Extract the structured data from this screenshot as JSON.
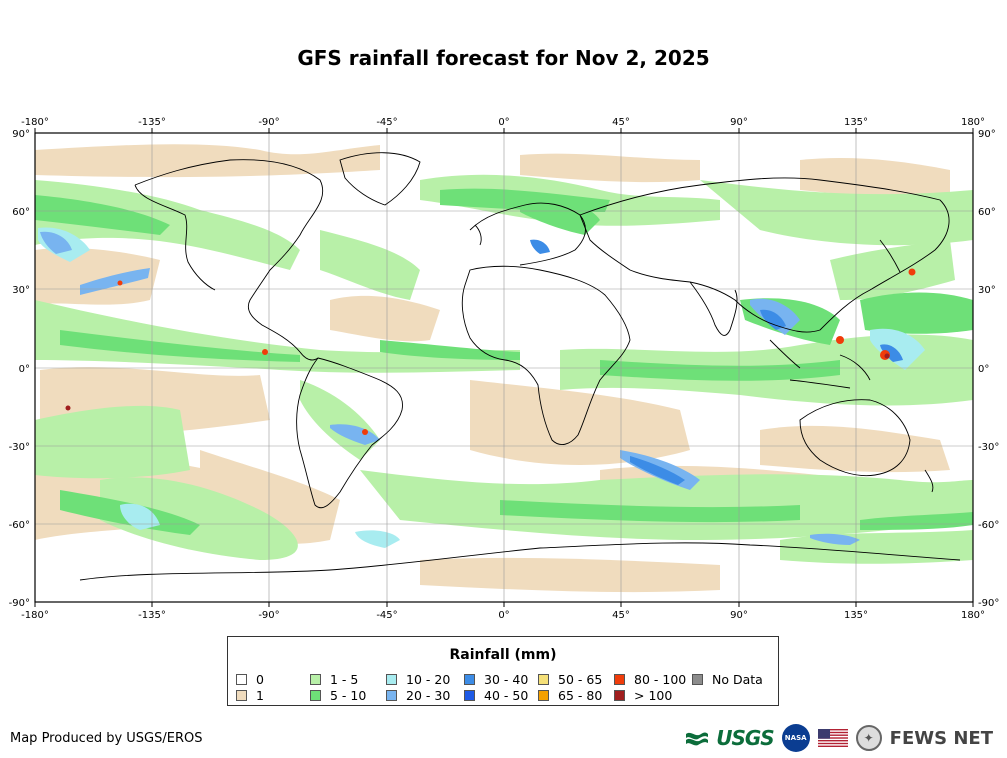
{
  "title": "GFS rainfall forecast for Nov 2, 2025",
  "lon_ticks": [
    "-180°",
    "-135°",
    "-90°",
    "-45°",
    "0°",
    "45°",
    "90°",
    "135°",
    "180°"
  ],
  "lat_ticks": [
    "90°",
    "60°",
    "30°",
    "0°",
    "-30°",
    "-60°",
    "-90°"
  ],
  "legend": {
    "title": "Rainfall (mm)",
    "items": [
      {
        "label": "0",
        "color": "#ffffff"
      },
      {
        "label": "1",
        "color": "#f0dcbe"
      },
      {
        "label": "1 - 5",
        "color": "#b8f0a8"
      },
      {
        "label": "5 - 10",
        "color": "#6ee078"
      },
      {
        "label": "10 - 20",
        "color": "#a8ecf0"
      },
      {
        "label": "20 - 30",
        "color": "#78b4f0"
      },
      {
        "label": "30 - 40",
        "color": "#3c8ce6"
      },
      {
        "label": "40 - 50",
        "color": "#1e5ae6"
      },
      {
        "label": "50 - 65",
        "color": "#f5e078"
      },
      {
        "label": "65 - 80",
        "color": "#f5a000"
      },
      {
        "label": "80 - 100",
        "color": "#f03c0a"
      },
      {
        "label": "> 100",
        "color": "#a01e1e"
      },
      {
        "label": "No Data",
        "color": "#8c8c8c"
      }
    ]
  },
  "credit": "Map Produced by USGS/EROS",
  "logos": {
    "usgs": "USGS",
    "nasa": "NASA",
    "fews": "FEWS NET"
  }
}
